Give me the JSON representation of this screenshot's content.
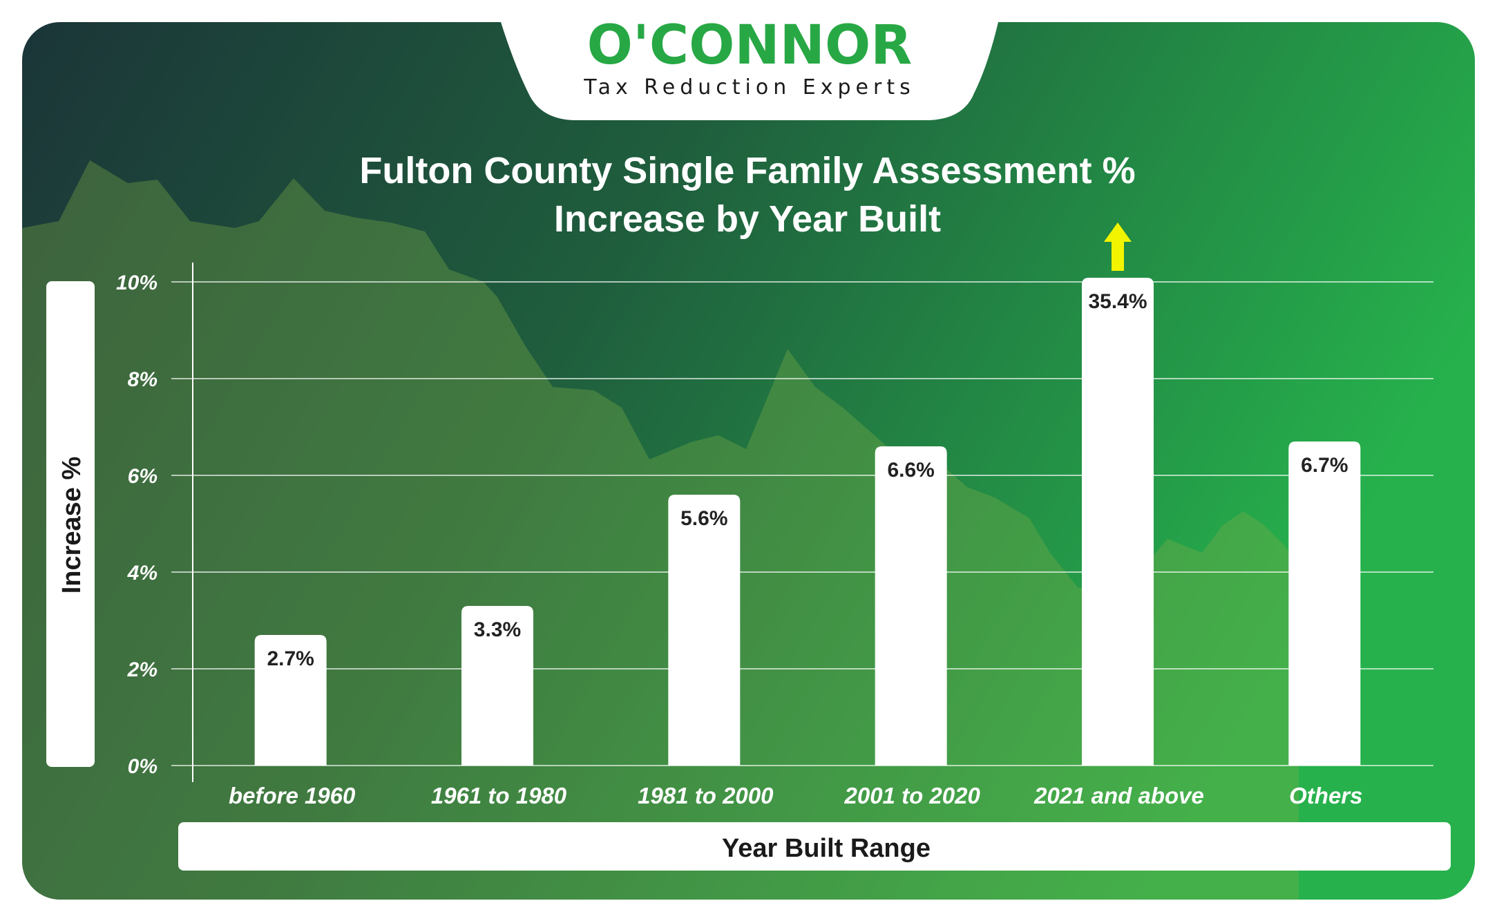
{
  "brand": {
    "name": "O'CONNOR",
    "tagline": "Tax Reduction Experts"
  },
  "colors": {
    "background_dark": "#1b3538",
    "background_mid": "#1f5e3d",
    "background_light": "#26b14c",
    "brand_green": "#27a845",
    "bar_fill": "#ffffff",
    "text_light": "#ffffff",
    "text_dark": "#222222",
    "arrow": "#f2f400"
  },
  "chart_data": {
    "type": "bar",
    "title_line1": "Fulton County Single Family Assessment %",
    "title_line2": "Increase by Year Built",
    "xlabel": "Year Built Range",
    "ylabel": "Increase %",
    "ylim": [
      0,
      10
    ],
    "yticks": [
      "0%",
      "2%",
      "4%",
      "6%",
      "8%",
      "10%"
    ],
    "grid": true,
    "categories": [
      "before 1960",
      "1961 to 1980",
      "1981 to 2000",
      "2001 to 2020",
      "2021 and above",
      "Others"
    ],
    "values": [
      2.7,
      3.3,
      5.6,
      6.6,
      35.4,
      6.7
    ],
    "value_labels": [
      "2.7%",
      "3.3%",
      "5.6%",
      "6.6%",
      "35.4%",
      "6.7%"
    ],
    "annotations": [
      {
        "category": "2021 and above",
        "type": "arrow-up",
        "meaning": "value exceeds axis maximum"
      }
    ]
  }
}
